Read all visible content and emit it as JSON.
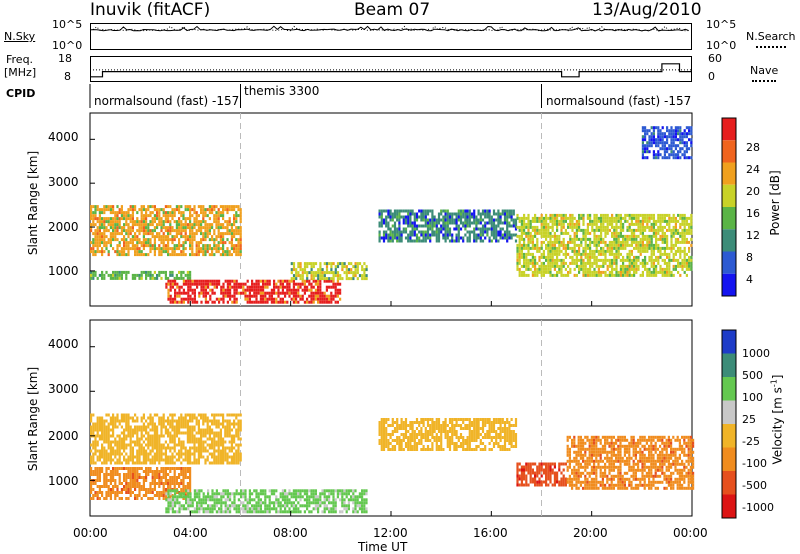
{
  "header": {
    "station": "Inuvik (fitACF)",
    "beam": "Beam 07",
    "date": "13/Aug/2010"
  },
  "top_panels": {
    "nsky_label": "N.Sky",
    "nsky_ticks": [
      "10^5",
      "10^0"
    ],
    "nsearch_label": "N.Search",
    "nsearch_ticks": [
      "10^5",
      "10^0"
    ],
    "freq_label_1": "Freq.",
    "freq_label_2": "[MHz]",
    "freq_ticks": [
      "18",
      "8"
    ],
    "nave_label": "Nave",
    "nave_ticks": [
      "60",
      "0"
    ],
    "cpid_label": "CPID",
    "cpid_segments": [
      {
        "label": "normalsound (fast) -157",
        "start_hour": 0
      },
      {
        "label": "themis 3300",
        "start_hour": 6
      },
      {
        "label": "normalsound (fast) -157",
        "start_hour": 18
      }
    ]
  },
  "power_panel": {
    "ylabel": "Slant Range [km]",
    "yticks": [
      "1000",
      "2000",
      "3000",
      "4000"
    ],
    "colorbar_label": "Power [dB]",
    "colorbar_ticks": [
      "4",
      "8",
      "12",
      "16",
      "20",
      "24",
      "28"
    ],
    "colors": [
      "#1414f0",
      "#2d5ad2",
      "#3c8c78",
      "#5ab446",
      "#c8d228",
      "#f0a01e",
      "#f0641e",
      "#e61e1e"
    ]
  },
  "velocity_panel": {
    "ylabel": "Slant Range [km]",
    "yticks": [
      "1000",
      "2000",
      "3000",
      "4000"
    ],
    "colorbar_label": "Velocity [m s",
    "colorbar_sup": "-1",
    "colorbar_label_end": "]",
    "colorbar_ticks": [
      "1000",
      "500",
      "100",
      "25",
      "-25",
      "-100",
      "-500",
      "-1000"
    ],
    "colors": [
      "#1e3cc8",
      "#3c8c78",
      "#64c850",
      "#c8c8c8",
      "#f0b428",
      "#f08c1e",
      "#e6501e",
      "#dc1414"
    ]
  },
  "xaxis": {
    "label": "Time UT",
    "ticks": [
      "00:00",
      "04:00",
      "08:00",
      "12:00",
      "16:00",
      "20:00",
      "00:00"
    ]
  },
  "chart_data": [
    {
      "type": "heatmap",
      "title": "",
      "xlabel": "Time UT",
      "ylabel": "Slant Range [km]",
      "xlim": [
        0,
        24
      ],
      "ylim": [
        200,
        4600
      ],
      "colorbar": {
        "label": "Power [dB]",
        "ticks": [
          4,
          8,
          12,
          16,
          20,
          24,
          28
        ]
      },
      "regions": [
        {
          "x": [
            0,
            6
          ],
          "y": [
            1400,
            2500
          ],
          "value": 20
        },
        {
          "x": [
            0,
            4
          ],
          "y": [
            800,
            1000
          ],
          "value": 14
        },
        {
          "x": [
            3,
            10
          ],
          "y": [
            300,
            800
          ],
          "value": 28
        },
        {
          "x": [
            8,
            11
          ],
          "y": [
            800,
            1200
          ],
          "value": 16
        },
        {
          "x": [
            11.5,
            17
          ],
          "y": [
            1700,
            2400
          ],
          "value": 8
        },
        {
          "x": [
            17,
            24
          ],
          "y": [
            900,
            2300
          ],
          "value": 18
        },
        {
          "x": [
            22,
            24
          ],
          "y": [
            3600,
            4300
          ],
          "value": 6
        }
      ]
    },
    {
      "type": "heatmap",
      "title": "",
      "xlabel": "Time UT",
      "ylabel": "Slant Range [km]",
      "xlim": [
        0,
        24
      ],
      "ylim": [
        200,
        4600
      ],
      "colorbar": {
        "label": "Velocity [m s-1]",
        "ticks": [
          1000,
          500,
          100,
          25,
          -25,
          -100,
          -500,
          -1000
        ]
      },
      "regions": [
        {
          "x": [
            0,
            6
          ],
          "y": [
            1400,
            2500
          ],
          "value": 0
        },
        {
          "x": [
            0,
            4
          ],
          "y": [
            600,
            1300
          ],
          "value": -100
        },
        {
          "x": [
            3,
            11
          ],
          "y": [
            300,
            800
          ],
          "value": 100
        },
        {
          "x": [
            11.5,
            17
          ],
          "y": [
            1700,
            2400
          ],
          "value": 0
        },
        {
          "x": [
            17,
            19
          ],
          "y": [
            900,
            1400
          ],
          "value": -500
        },
        {
          "x": [
            19,
            24
          ],
          "y": [
            800,
            2000
          ],
          "value": -100
        }
      ]
    },
    {
      "type": "line",
      "title": "",
      "xlim": [
        0,
        24
      ],
      "series": [
        {
          "name": "N.Sky",
          "x": [
            0,
            4,
            8,
            12,
            16,
            20,
            24
          ],
          "y": [
            8000,
            9000,
            10000,
            9000,
            9000,
            8000,
            9000
          ]
        },
        {
          "name": "N.Search",
          "x": [
            0,
            4,
            8,
            12,
            16,
            20,
            24
          ],
          "y": [
            9000,
            9000,
            10000,
            9500,
            9000,
            8500,
            9000
          ]
        }
      ]
    },
    {
      "type": "line",
      "title": "",
      "xlim": [
        0,
        24
      ],
      "series": [
        {
          "name": "Freq.",
          "x": [
            0,
            0.5,
            6,
            18,
            18.8,
            19.5,
            22,
            22.8,
            23.5,
            24
          ],
          "y": [
            10,
            12,
            12,
            12,
            10,
            12,
            12,
            15,
            12,
            12
          ]
        },
        {
          "name": "Nave",
          "x": [
            0,
            24
          ],
          "y": [
            28,
            28
          ]
        }
      ]
    }
  ]
}
